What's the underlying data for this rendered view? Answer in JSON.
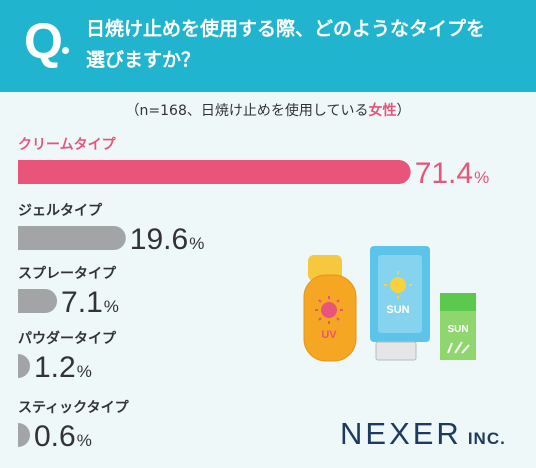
{
  "question": {
    "mark": "Q",
    "line1": "日焼け止めを使用する際、どのようなタイプを",
    "line2": "選びますか？"
  },
  "subtitle": {
    "prefix": "（n=168、日焼け止めを使用している",
    "highlight": "女性",
    "suffix": "）"
  },
  "colors": {
    "header": "#21b4cf",
    "highlight": "#e8547a",
    "bar": "#a3a4a6",
    "text": "#333333",
    "background": "#eef8f9"
  },
  "chart_data": {
    "type": "bar",
    "orientation": "horizontal",
    "unit": "%",
    "categories": [
      "クリームタイプ",
      "ジェルタイプ",
      "スプレータイプ",
      "パウダータイプ",
      "スティックタイプ"
    ],
    "values": [
      71.4,
      19.6,
      7.1,
      1.2,
      0.6
    ],
    "value_labels": [
      "71.4",
      "19.6",
      "7.1",
      "1.2",
      "0.6"
    ],
    "highlight_index": 0
  },
  "illustration": {
    "uv_label": "UV",
    "sun_label_1": "SUN",
    "sun_label_2": "SUN"
  },
  "logo": {
    "main": "NEXER",
    "sub": "INC."
  }
}
